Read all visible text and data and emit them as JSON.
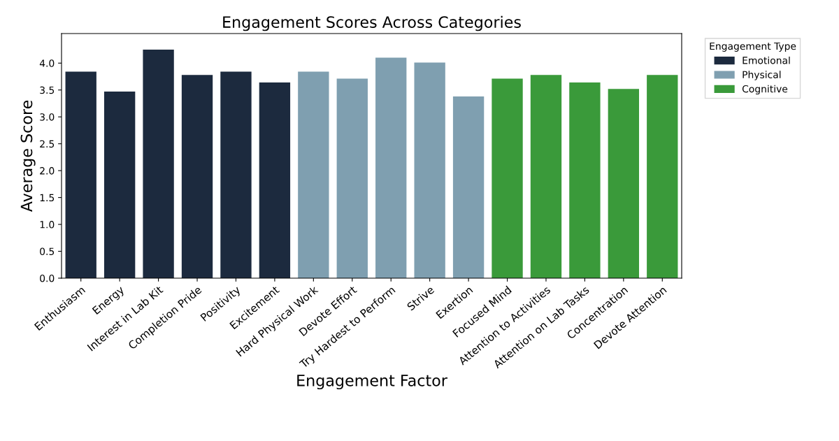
{
  "chart_data": {
    "type": "bar",
    "title": "Engagement Scores Across Categories",
    "xlabel": "Engagement Factor",
    "ylabel": "Average Score",
    "legend_title": "Engagement Type",
    "categories": [
      "Enthusiasm",
      "Energy",
      "Interest in Lab Kit",
      "Completion Pride",
      "Positivity",
      "Excitement",
      "Hard Physical Work",
      "Devote Effort",
      "Try Hardest to Perform",
      "Strive",
      "Exertion",
      "Focused Mind",
      "Attention to Activities",
      "Attention on Lab Tasks",
      "Concentration",
      "Devote Attention"
    ],
    "series": [
      {
        "name": "Emotional",
        "color": "#1c2a3e",
        "values": [
          3.84,
          3.47,
          4.25,
          3.78,
          3.84,
          3.64,
          null,
          null,
          null,
          null,
          null,
          null,
          null,
          null,
          null,
          null
        ]
      },
      {
        "name": "Physical",
        "color": "#7f9fb0",
        "values": [
          null,
          null,
          null,
          null,
          null,
          null,
          3.84,
          3.71,
          4.1,
          4.01,
          3.38,
          null,
          null,
          null,
          null,
          null
        ]
      },
      {
        "name": "Cognitive",
        "color": "#3a9a3a",
        "values": [
          null,
          null,
          null,
          null,
          null,
          null,
          null,
          null,
          null,
          null,
          null,
          3.71,
          3.78,
          3.64,
          3.52,
          3.78
        ]
      }
    ],
    "ylim": [
      0,
      4.55
    ],
    "yticks": [
      {
        "value": 0,
        "label": "0.0"
      },
      0.5,
      {
        "value": 1,
        "label": "1.0"
      },
      1.5,
      {
        "value": 2,
        "label": "2.0"
      },
      2.5,
      {
        "value": 3,
        "label": "3.0"
      },
      3.5,
      {
        "value": 4,
        "label": "4.0"
      }
    ],
    "legend": "top right",
    "grid": false
  }
}
